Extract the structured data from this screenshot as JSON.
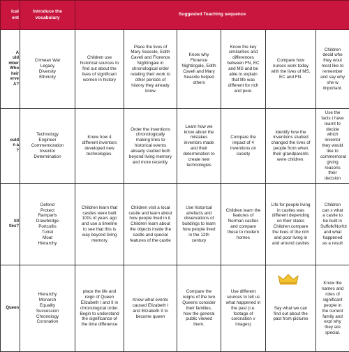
{
  "header": {
    "cells": [
      "ical\nent",
      "Introduce the\nvocabulary",
      "Suggested Teaching sequence"
    ]
  },
  "rows": [
    {
      "cells": [
        "A\nuld\nmber\nWho\nheir\nerve\nA?",
        "Crimean War\nLegacy\nDiversity\nEthnicity",
        "Children use historical sources to find out about the lives of significant women in history",
        "Place the lives of Mary Seacole, Edith Cavell and Florence Nightingale in chronological order relating their work to other periods of history they already know",
        "Know why Florence Nightingale, Edith Cavell and Mary Seacole helped others",
        "Know the key similarities and differences between FN, EC and MS and be able to explain that life was different for rich and poor.",
        "Compare how nurses work today with the lives of MS, EC and FN.",
        "Children decid who they woul most like to remember and say why she w important."
      ]
    },
    {
      "cells": [
        "ould\nn a\n?",
        "Technology\nEngineer\nCommemoration\nInventor\nDetermination",
        "Know how 4 different inventors developed new technologies.",
        "Order the inventions chronologically making links to historical events already studied both beyond living memory and more recently.",
        "Learn how we know about the mistakes inventors made and their determination to create new technologies",
        "Compare the impact of 4 inventions on society",
        "Identify how the inventions studied changed the lives of people from when their grandparents were children.",
        "Use the facts t have learnt to decide which inventor they would like to commemorat giving reasons their decision"
      ]
    },
    {
      "cells": [
        "till\ntles?",
        "Defend\nProtect\nRamparts\nDrawbridge\nPortcullis\nTurret\nMoat\nHierarchy",
        "Children learn that castles were built 100s of years ago and use a timeline to see that this is way beyond living memory",
        "Children visit a local castle and learn about how people lived in it. Children learn about the objects inside the castle and special features of the castle",
        "Use historical artefacts and observations of buildings to learn how people lived in the 12th century",
        "Children learn the features of Norman castles and compare these to modern homes",
        "Life for people living in castles was different depending on their status Children compare the lives of the rich and poor living in and around castles",
        "Children can s what a castle to be built in Suffolk/Norfol and what happened as a result"
      ]
    },
    {
      "cells": [
        "Queen",
        "Hierarchy\nMonarch\nEquality\nSuccession\nChronology\nCoronation",
        "place the life and reign of Queen Elizabeth I and II in chronological order. Begin to understand the significance of the time difference",
        "Know what events caused Elizabeth I and Elizabeth II to become queen",
        "Compare the reigns of the two Queens consider their families, how the general public viewed them.",
        "Use different sources to tell us what happened in the past (i.e. footage of coronation v images)",
        "\n\nSay what we can find out about the past from pictures",
        "Know the names and roles of significant people in the current family and expl why they are special."
      ]
    }
  ]
}
